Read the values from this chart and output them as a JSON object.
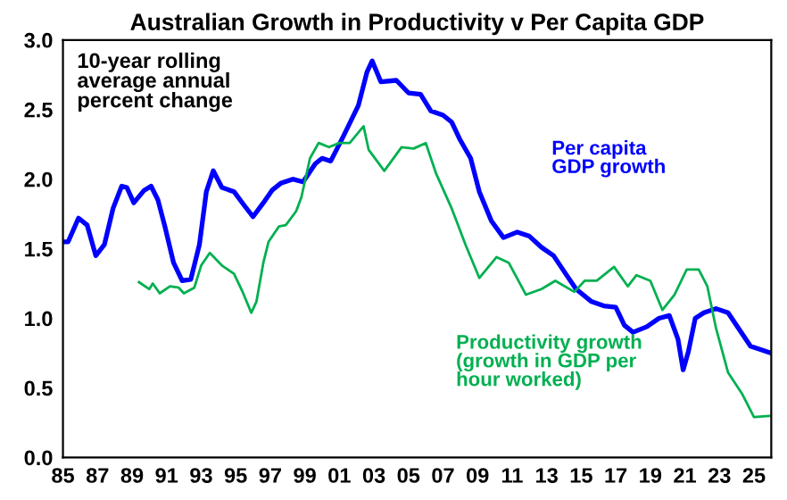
{
  "chart_data": {
    "type": "line",
    "title": "Australian Growth in Productivity v Per Capita GDP",
    "annotations": [
      "10-year rolling\naverage annual\npercent change"
    ],
    "xlim": [
      1985,
      2026
    ],
    "ylim": [
      0,
      3
    ],
    "xticks": [
      {
        "value": 1985,
        "label": "85"
      },
      {
        "value": 1987,
        "label": "87"
      },
      {
        "value": 1989,
        "label": "89"
      },
      {
        "value": 1991,
        "label": "91"
      },
      {
        "value": 1993,
        "label": "93"
      },
      {
        "value": 1995,
        "label": "95"
      },
      {
        "value": 1997,
        "label": "97"
      },
      {
        "value": 1999,
        "label": "99"
      },
      {
        "value": 2001,
        "label": "01"
      },
      {
        "value": 2003,
        "label": "03"
      },
      {
        "value": 2005,
        "label": "05"
      },
      {
        "value": 2007,
        "label": "07"
      },
      {
        "value": 2009,
        "label": "09"
      },
      {
        "value": 2011,
        "label": "11"
      },
      {
        "value": 2013,
        "label": "13"
      },
      {
        "value": 2015,
        "label": "15"
      },
      {
        "value": 2017,
        "label": "17"
      },
      {
        "value": 2019,
        "label": "19"
      },
      {
        "value": 2021,
        "label": "21"
      },
      {
        "value": 2023,
        "label": "23"
      },
      {
        "value": 2025,
        "label": "25"
      }
    ],
    "yticks": [
      {
        "value": 0,
        "label": "0.0"
      },
      {
        "value": 0.5,
        "label": "0.5"
      },
      {
        "value": 1,
        "label": "1.0"
      },
      {
        "value": 1.5,
        "label": "1.5"
      },
      {
        "value": 2,
        "label": "2.0"
      },
      {
        "value": 2.5,
        "label": "2.5"
      },
      {
        "value": 3,
        "label": "3.0"
      }
    ],
    "grid": false,
    "legend": false,
    "series": [
      {
        "name": "Per capita\nGDP growth",
        "color": "#0000ff",
        "x": [
          1985.0,
          1985.3,
          1985.9,
          1986.4,
          1986.9,
          1987.4,
          1987.9,
          1988.4,
          1988.7,
          1989.1,
          1989.7,
          1990.1,
          1990.5,
          1990.9,
          1991.4,
          1991.9,
          1992.4,
          1992.9,
          1993.3,
          1993.7,
          1994.2,
          1994.9,
          1995.5,
          1996.0,
          1996.6,
          1997.1,
          1997.6,
          1998.3,
          1998.9,
          1999.6,
          2000.0,
          2000.5,
          2001.2,
          2002.1,
          2002.6,
          2002.9,
          2003.4,
          2004.3,
          2005.0,
          2005.7,
          2006.3,
          2007.0,
          2007.5,
          2008.0,
          2008.6,
          2009.1,
          2009.8,
          2010.5,
          2011.3,
          2012.0,
          2012.7,
          2013.4,
          2014.1,
          2014.7,
          2015.6,
          2016.3,
          2017.0,
          2017.5,
          2018.0,
          2018.8,
          2019.5,
          2020.1,
          2020.6,
          2020.9,
          2021.2,
          2021.6,
          2022.1,
          2022.8,
          2023.5,
          2024.2,
          2024.8,
          2026.0
        ],
        "values": [
          1.55,
          1.55,
          1.72,
          1.67,
          1.45,
          1.53,
          1.79,
          1.95,
          1.94,
          1.83,
          1.92,
          1.95,
          1.85,
          1.66,
          1.4,
          1.27,
          1.28,
          1.53,
          1.91,
          2.06,
          1.94,
          1.91,
          1.81,
          1.73,
          1.83,
          1.92,
          1.97,
          2.0,
          1.98,
          2.11,
          2.15,
          2.13,
          2.3,
          2.53,
          2.77,
          2.85,
          2.7,
          2.71,
          2.62,
          2.61,
          2.49,
          2.46,
          2.41,
          2.28,
          2.15,
          1.91,
          1.7,
          1.58,
          1.62,
          1.59,
          1.51,
          1.45,
          1.32,
          1.21,
          1.12,
          1.09,
          1.08,
          0.95,
          0.9,
          0.94,
          1.0,
          1.02,
          0.85,
          0.63,
          0.76,
          1.0,
          1.04,
          1.07,
          1.04,
          0.91,
          0.8,
          0.75
        ]
      },
      {
        "name": "Productivity growth\n(growth in GDP per\nhour worked)",
        "color": "#00b050",
        "x": [
          1989.4,
          1990.0,
          1990.2,
          1990.6,
          1991.2,
          1991.7,
          1992.0,
          1992.6,
          1993.0,
          1993.5,
          1994.2,
          1994.9,
          1995.4,
          1995.9,
          1996.2,
          1996.6,
          1996.9,
          1997.5,
          1997.9,
          1998.5,
          1998.8,
          1999.3,
          1999.8,
          2000.4,
          2001.0,
          2001.6,
          2002.4,
          2002.7,
          2003.6,
          2004.6,
          2005.3,
          2006.0,
          2006.6,
          2007.5,
          2008.3,
          2009.1,
          2010.1,
          2010.8,
          2011.8,
          2012.7,
          2013.5,
          2014.6,
          2015.2,
          2015.9,
          2016.9,
          2017.7,
          2018.2,
          2019.0,
          2019.7,
          2020.4,
          2021.1,
          2021.8,
          2022.3,
          2022.8,
          2023.5,
          2024.3,
          2025.0,
          2026.0
        ],
        "values": [
          1.26,
          1.21,
          1.25,
          1.18,
          1.23,
          1.22,
          1.18,
          1.22,
          1.38,
          1.47,
          1.38,
          1.32,
          1.19,
          1.04,
          1.12,
          1.4,
          1.55,
          1.66,
          1.67,
          1.77,
          1.87,
          2.15,
          2.26,
          2.23,
          2.26,
          2.26,
          2.38,
          2.21,
          2.06,
          2.23,
          2.22,
          2.26,
          2.04,
          1.79,
          1.53,
          1.29,
          1.44,
          1.4,
          1.17,
          1.21,
          1.27,
          1.19,
          1.27,
          1.27,
          1.37,
          1.23,
          1.31,
          1.27,
          1.06,
          1.17,
          1.35,
          1.35,
          1.23,
          0.93,
          0.61,
          0.46,
          0.29,
          0.3
        ]
      }
    ]
  }
}
